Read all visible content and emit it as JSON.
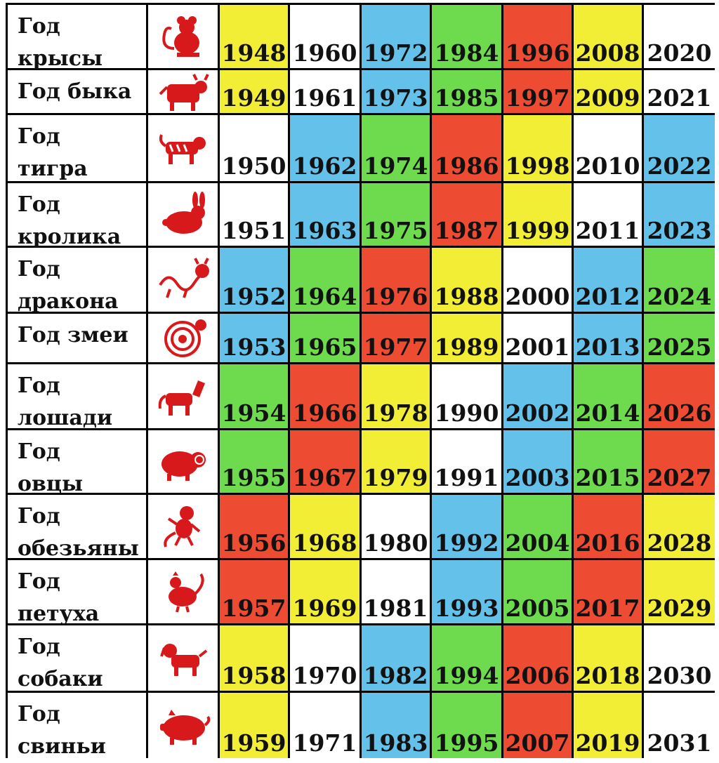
{
  "colors": {
    "Y": "#f2ee35",
    "W": "#ffffff",
    "B": "#64c1ea",
    "G": "#6ddb4d",
    "R": "#ed4b32",
    "icon": "#d8191c"
  },
  "rows": [
    {
      "label": "Год\nкрысы",
      "icon": "rat-icon",
      "years": [
        "1948",
        "1960",
        "1972",
        "1984",
        "1996",
        "2008",
        "2020"
      ],
      "colors": [
        "Y",
        "W",
        "B",
        "G",
        "R",
        "Y",
        "W"
      ]
    },
    {
      "label": "Год быка",
      "icon": "ox-icon",
      "years": [
        "1949",
        "1961",
        "1973",
        "1985",
        "1997",
        "2009",
        "2021"
      ],
      "colors": [
        "Y",
        "W",
        "B",
        "G",
        "R",
        "Y",
        "W"
      ]
    },
    {
      "label": "Год\nтигра",
      "icon": "tiger-icon",
      "years": [
        "1950",
        "1962",
        "1974",
        "1986",
        "1998",
        "2010",
        "2022"
      ],
      "colors": [
        "W",
        "B",
        "G",
        "R",
        "Y",
        "W",
        "B"
      ]
    },
    {
      "label": "Год\nкролика",
      "icon": "rabbit-icon",
      "years": [
        "1951",
        "1963",
        "1975",
        "1987",
        "1999",
        "2011",
        "2023"
      ],
      "colors": [
        "W",
        "B",
        "G",
        "R",
        "Y",
        "W",
        "B"
      ]
    },
    {
      "label": "Год\nдракона",
      "icon": "dragon-icon",
      "years": [
        "1952",
        "1964",
        "1976",
        "1988",
        "2000",
        "2012",
        "2024"
      ],
      "colors": [
        "B",
        "G",
        "R",
        "Y",
        "W",
        "B",
        "G"
      ]
    },
    {
      "label": "Год змеи",
      "icon": "snake-icon",
      "years": [
        "1953",
        "1965",
        "1977",
        "1989",
        "2001",
        "2013",
        "2025"
      ],
      "colors": [
        "B",
        "G",
        "R",
        "Y",
        "W",
        "B",
        "G"
      ]
    },
    {
      "label": "Год\nлошади",
      "icon": "horse-icon",
      "years": [
        "1954",
        "1966",
        "1978",
        "1990",
        "2002",
        "2014",
        "2026"
      ],
      "colors": [
        "G",
        "R",
        "Y",
        "W",
        "B",
        "G",
        "R"
      ]
    },
    {
      "label": "Год\nовцы",
      "icon": "sheep-icon",
      "years": [
        "1955",
        "1967",
        "1979",
        "1991",
        "2003",
        "2015",
        "2027"
      ],
      "colors": [
        "G",
        "R",
        "Y",
        "W",
        "B",
        "G",
        "R"
      ]
    },
    {
      "label": "Год\nобезьяны",
      "icon": "monkey-icon",
      "years": [
        "1956",
        "1968",
        "1980",
        "1992",
        "2004",
        "2016",
        "2028"
      ],
      "colors": [
        "R",
        "Y",
        "W",
        "B",
        "G",
        "R",
        "Y"
      ]
    },
    {
      "label": "Год\nпетуха",
      "icon": "rooster-icon",
      "years": [
        "1957",
        "1969",
        "1981",
        "1993",
        "2005",
        "2017",
        "2029"
      ],
      "colors": [
        "R",
        "Y",
        "W",
        "B",
        "G",
        "R",
        "Y"
      ]
    },
    {
      "label": "Год\nсобаки",
      "icon": "dog-icon",
      "years": [
        "1958",
        "1970",
        "1982",
        "1994",
        "2006",
        "2018",
        "2030"
      ],
      "colors": [
        "Y",
        "W",
        "B",
        "G",
        "R",
        "Y",
        "W"
      ]
    },
    {
      "label": "Год\nсвиньи",
      "icon": "pig-icon",
      "years": [
        "1959",
        "1971",
        "1983",
        "1995",
        "2007",
        "2019",
        "2031"
      ],
      "colors": [
        "Y",
        "W",
        "B",
        "G",
        "R",
        "Y",
        "W"
      ]
    }
  ]
}
